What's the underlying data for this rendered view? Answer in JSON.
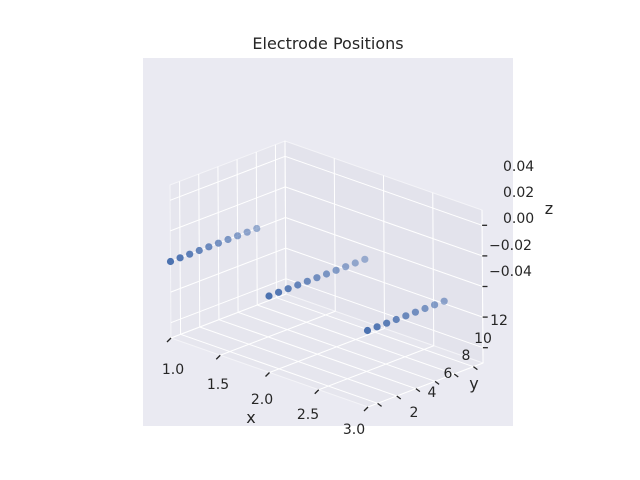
{
  "chart_data": {
    "type": "scatter",
    "projection": "3d",
    "title": "Electrode Positions",
    "xlabel": "x",
    "ylabel": "y",
    "zlabel": "z",
    "xlim": [
      1.0,
      3.0
    ],
    "ylim": [
      1,
      13
    ],
    "zlim": [
      -0.05,
      0.05
    ],
    "xticks": [
      "1.0",
      "1.5",
      "2.0",
      "2.5",
      "3.0"
    ],
    "yticks": [
      "2",
      "4",
      "6",
      "8",
      "10",
      "12"
    ],
    "zticks": [
      "−0.04",
      "−0.02",
      "0.00",
      "0.02",
      "0.04"
    ],
    "grid": true,
    "marker_color": "#4c72b0",
    "background": "#eaeaf2",
    "points": [
      {
        "x": 1,
        "y": 1,
        "z": 0
      },
      {
        "x": 1,
        "y": 2,
        "z": 0
      },
      {
        "x": 1,
        "y": 3,
        "z": 0
      },
      {
        "x": 1,
        "y": 4,
        "z": 0
      },
      {
        "x": 1,
        "y": 5,
        "z": 0
      },
      {
        "x": 1,
        "y": 6,
        "z": 0
      },
      {
        "x": 1,
        "y": 7,
        "z": 0
      },
      {
        "x": 1,
        "y": 8,
        "z": 0
      },
      {
        "x": 1,
        "y": 9,
        "z": 0
      },
      {
        "x": 1,
        "y": 10,
        "z": 0
      },
      {
        "x": 2,
        "y": 1,
        "z": 0
      },
      {
        "x": 2,
        "y": 2,
        "z": 0
      },
      {
        "x": 2,
        "y": 3,
        "z": 0
      },
      {
        "x": 2,
        "y": 4,
        "z": 0
      },
      {
        "x": 2,
        "y": 5,
        "z": 0
      },
      {
        "x": 2,
        "y": 6,
        "z": 0
      },
      {
        "x": 2,
        "y": 7,
        "z": 0
      },
      {
        "x": 2,
        "y": 8,
        "z": 0
      },
      {
        "x": 2,
        "y": 9,
        "z": 0
      },
      {
        "x": 2,
        "y": 10,
        "z": 0
      },
      {
        "x": 2,
        "y": 11,
        "z": 0
      },
      {
        "x": 3,
        "y": 1,
        "z": 0
      },
      {
        "x": 3,
        "y": 2,
        "z": 0
      },
      {
        "x": 3,
        "y": 3,
        "z": 0
      },
      {
        "x": 3,
        "y": 4,
        "z": 0
      },
      {
        "x": 3,
        "y": 5,
        "z": 0
      },
      {
        "x": 3,
        "y": 6,
        "z": 0
      },
      {
        "x": 3,
        "y": 7,
        "z": 0
      },
      {
        "x": 3,
        "y": 8,
        "z": 0
      },
      {
        "x": 3,
        "y": 9,
        "z": 0
      }
    ]
  }
}
